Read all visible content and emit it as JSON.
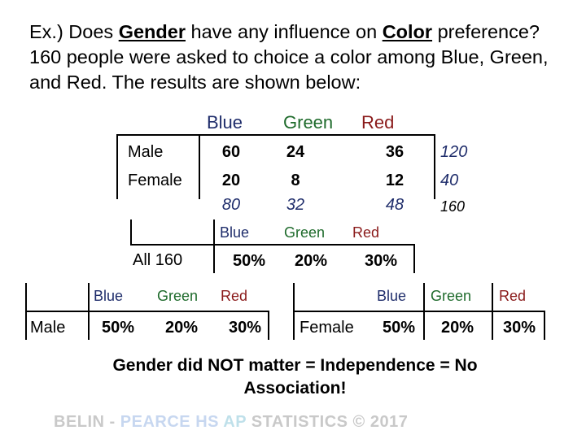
{
  "question": {
    "part1": "Ex.)  Does ",
    "gender": "Gender",
    "part2": " have any influence on ",
    "color": "Color",
    "part3": " preference?  160 people were asked to choice a color among Blue, Green, and Red.  The results are shown below:"
  },
  "table": {
    "headers": [
      "Blue",
      "Green",
      "Red"
    ],
    "rows": [
      {
        "label": "Male",
        "values": [
          "60",
          "24",
          "36"
        ],
        "total": "120"
      },
      {
        "label": "Female",
        "values": [
          "20",
          "8",
          "12"
        ],
        "total": "40"
      }
    ],
    "col_totals": [
      "80",
      "32",
      "48"
    ],
    "grand_total": "160"
  },
  "all_table": {
    "headers": [
      "Blue",
      "Green",
      "Red"
    ],
    "label": "All 160",
    "values": [
      "50%",
      "20%",
      "30%"
    ]
  },
  "male_table": {
    "headers": [
      "Blue",
      "Green",
      "Red"
    ],
    "label": "Male",
    "values": [
      "50%",
      "20%",
      "30%"
    ]
  },
  "female_table": {
    "headers": [
      "Blue",
      "Green",
      "Red"
    ],
    "label": "Female",
    "values": [
      "50%",
      "20%",
      "30%"
    ]
  },
  "conclusion": "Gender did NOT matter = Independence = No Association!",
  "footer": {
    "belin": "BELIN - ",
    "pearce": "PEARCE HS",
    "ap": "  AP",
    "stats": " STATISTICS © 2017"
  },
  "colors": {
    "blue": "#1f2d6b",
    "green": "#1f6b2c",
    "red": "#8a1a1a"
  }
}
